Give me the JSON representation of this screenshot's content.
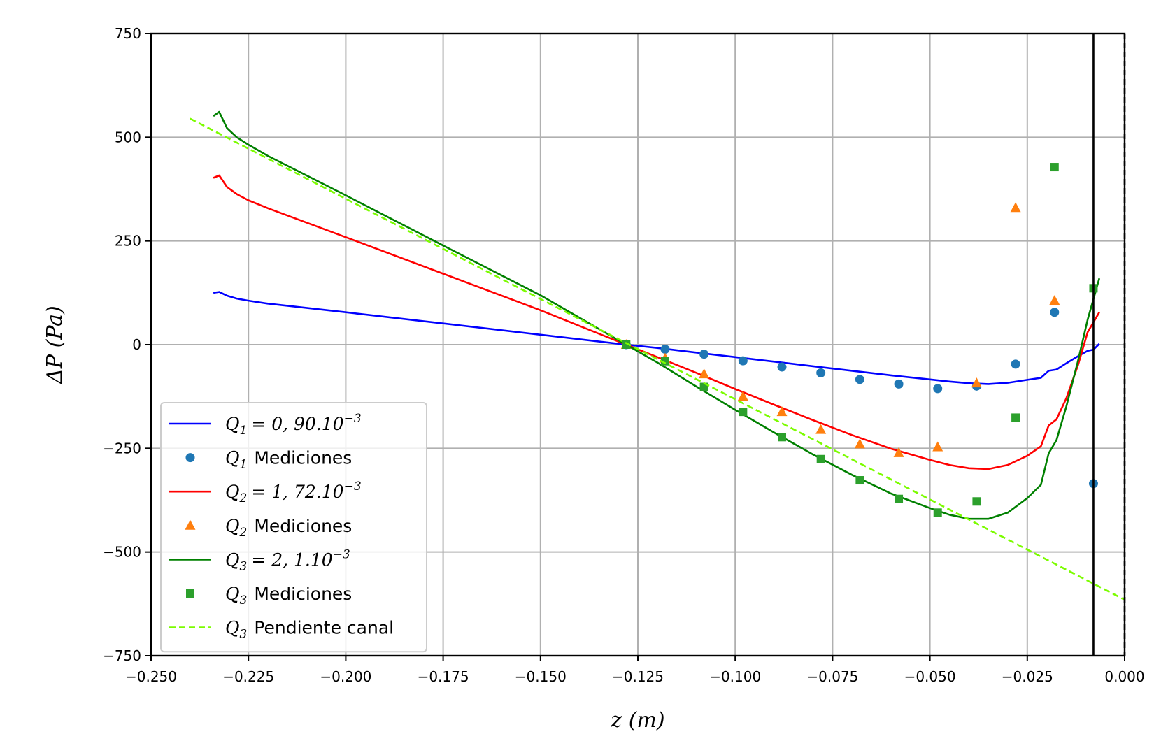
{
  "chart_data": {
    "type": "line",
    "xlabel": "z (m)",
    "ylabel": "ΔP (Pa)",
    "xlim": [
      -0.25,
      0.0
    ],
    "ylim": [
      -750,
      750
    ],
    "x_ticks": [
      -0.25,
      -0.225,
      -0.2,
      -0.175,
      -0.15,
      -0.125,
      -0.1,
      -0.075,
      -0.05,
      -0.025,
      0.0
    ],
    "x_tick_labels": [
      "−0.250",
      "−0.225",
      "−0.200",
      "−0.175",
      "−0.150",
      "−0.125",
      "−0.100",
      "−0.075",
      "−0.050",
      "−0.025",
      "0.000"
    ],
    "y_ticks": [
      -750,
      -500,
      -250,
      0,
      250,
      500,
      750
    ],
    "y_tick_labels": [
      "−750",
      "−500",
      "−250",
      "0",
      "250",
      "500",
      "750"
    ],
    "grid": true,
    "legend_position": "lower-left",
    "vertical_lines": [
      {
        "x": -0.008,
        "color": "#000000",
        "style": "solid"
      },
      {
        "x": 0.0,
        "color": "#000000",
        "style": "dashed"
      }
    ],
    "series": [
      {
        "name": "Q1 = 0,90.10−3",
        "legend": {
          "sym": "Q",
          "sub": "1",
          "rest": "= 0, 90.10",
          "sup": "−3",
          "text": ""
        },
        "kind": "line",
        "color": "#0000ff",
        "style": "solid",
        "x": [
          -0.234,
          -0.2325,
          -0.2305,
          -0.228,
          -0.225,
          -0.22,
          -0.2,
          -0.175,
          -0.15,
          -0.128,
          -0.12,
          -0.11,
          -0.1,
          -0.09,
          -0.08,
          -0.07,
          -0.06,
          -0.05,
          -0.045,
          -0.04,
          -0.035,
          -0.03,
          -0.025,
          -0.0215,
          -0.0195,
          -0.0175,
          -0.015,
          -0.012,
          -0.0095,
          -0.008,
          -0.0065
        ],
        "y": [
          125,
          127,
          118,
          111,
          106,
          99,
          78,
          51,
          24,
          0,
          -8,
          -19,
          -30,
          -41,
          -52,
          -63,
          -74,
          -84,
          -89,
          -93,
          -95,
          -92,
          -85,
          -80,
          -63,
          -60,
          -45,
          -28,
          -15,
          -12,
          2
        ]
      },
      {
        "name": "Q1 Mediciones",
        "legend": {
          "sym": "Q",
          "sub": "1",
          "rest": "",
          "sup": "",
          "text": "Mediciones"
        },
        "kind": "scatter",
        "marker": "circle",
        "color": "#1f77b4",
        "x": [
          -0.128,
          -0.118,
          -0.108,
          -0.098,
          -0.088,
          -0.078,
          -0.068,
          -0.058,
          -0.048,
          -0.038,
          -0.028,
          -0.018,
          -0.008
        ],
        "y": [
          0,
          -11,
          -23,
          -39,
          -54,
          -68,
          -84,
          -95,
          -106,
          -100,
          -47,
          78,
          -335
        ]
      },
      {
        "name": "Q2 = 1,72.10−3",
        "legend": {
          "sym": "Q",
          "sub": "2",
          "rest": "= 1, 72.10",
          "sup": "−3",
          "text": ""
        },
        "kind": "line",
        "color": "#ff0000",
        "style": "solid",
        "x": [
          -0.234,
          -0.2325,
          -0.2305,
          -0.228,
          -0.225,
          -0.22,
          -0.2,
          -0.175,
          -0.15,
          -0.128,
          -0.12,
          -0.11,
          -0.1,
          -0.09,
          -0.08,
          -0.07,
          -0.06,
          -0.05,
          -0.045,
          -0.04,
          -0.035,
          -0.03,
          -0.025,
          -0.0215,
          -0.0195,
          -0.0175,
          -0.015,
          -0.012,
          -0.0095,
          -0.0065
        ],
        "y": [
          402,
          408,
          380,
          363,
          348,
          329,
          259,
          171,
          83,
          0,
          -30,
          -68,
          -107,
          -145,
          -182,
          -218,
          -251,
          -278,
          -290,
          -298,
          -300,
          -290,
          -268,
          -245,
          -195,
          -180,
          -130,
          -50,
          30,
          78
        ]
      },
      {
        "name": "Q2 Mediciones",
        "legend": {
          "sym": "Q",
          "sub": "2",
          "rest": "",
          "sup": "",
          "text": "Mediciones"
        },
        "kind": "scatter",
        "marker": "triangle",
        "color": "#ff7f0e",
        "x": [
          -0.128,
          -0.118,
          -0.108,
          -0.098,
          -0.088,
          -0.078,
          -0.068,
          -0.058,
          -0.048,
          -0.038,
          -0.028,
          -0.018
        ],
        "y": [
          0,
          -33,
          -71,
          -125,
          -162,
          -205,
          -240,
          -261,
          -247,
          -93,
          330,
          106
        ]
      },
      {
        "name": "Q3 = 2,1.10−3",
        "legend": {
          "sym": "Q",
          "sub": "3",
          "rest": "= 2, 1.10",
          "sup": "−3",
          "text": ""
        },
        "kind": "line",
        "color": "#008000",
        "style": "solid",
        "x": [
          -0.234,
          -0.2325,
          -0.2305,
          -0.228,
          -0.225,
          -0.22,
          -0.2,
          -0.175,
          -0.15,
          -0.128,
          -0.12,
          -0.11,
          -0.1,
          -0.09,
          -0.08,
          -0.07,
          -0.06,
          -0.05,
          -0.045,
          -0.04,
          -0.035,
          -0.03,
          -0.025,
          -0.0215,
          -0.0195,
          -0.0175,
          -0.015,
          -0.012,
          -0.0095,
          -0.0065
        ],
        "y": [
          551,
          561,
          522,
          500,
          482,
          455,
          360,
          239,
          119,
          0,
          -43,
          -101,
          -157,
          -212,
          -265,
          -314,
          -359,
          -394,
          -410,
          -420,
          -420,
          -405,
          -370,
          -338,
          -262,
          -230,
          -150,
          -40,
          60,
          160
        ]
      },
      {
        "name": "Q3 Mediciones",
        "legend": {
          "sym": "Q",
          "sub": "3",
          "rest": "",
          "sup": "",
          "text": "Mediciones"
        },
        "kind": "scatter",
        "marker": "square",
        "color": "#2ca02c",
        "x": [
          -0.128,
          -0.118,
          -0.108,
          -0.098,
          -0.088,
          -0.078,
          -0.068,
          -0.058,
          -0.048,
          -0.038,
          -0.028,
          -0.018,
          -0.008
        ],
        "y": [
          0,
          -40,
          -102,
          -162,
          -223,
          -276,
          -327,
          -372,
          -405,
          -378,
          -176,
          428,
          136
        ]
      },
      {
        "name": "Q3 Pendiente canal",
        "legend": {
          "sym": "Q",
          "sub": "3",
          "rest": "",
          "sup": "",
          "text": "Pendiente canal"
        },
        "kind": "line",
        "color": "#7cfc00",
        "style": "dashed",
        "x": [
          -0.24,
          0.0
        ],
        "y": [
          545,
          -615
        ]
      }
    ]
  }
}
